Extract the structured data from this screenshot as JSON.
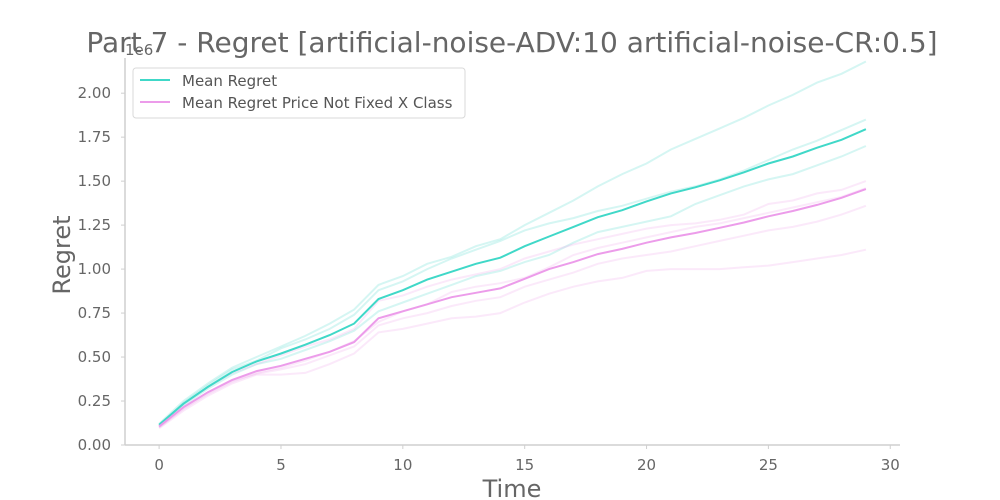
{
  "chart_data": {
    "type": "line",
    "title": "Part 7 - Regret [artificial-noise-ADV:10 artificial-noise-CR:0.5]",
    "xlabel": "Time",
    "ylabel": "Regret",
    "y_scale_label": "1e6",
    "xlim": [
      -1.4,
      30.4
    ],
    "ylim": [
      0,
      2200000
    ],
    "x_ticks": [
      0,
      5,
      10,
      15,
      20,
      25,
      30
    ],
    "y_ticks": [
      0,
      250000,
      500000,
      750000,
      1000000,
      1250000,
      1500000,
      1750000,
      2000000
    ],
    "x_tick_labels": [
      "0",
      "5",
      "10",
      "15",
      "20",
      "25",
      "30"
    ],
    "y_tick_labels": [
      "0.00",
      "0.25",
      "0.50",
      "0.75",
      "1.00",
      "1.25",
      "1.50",
      "1.75",
      "2.00"
    ],
    "grid": false,
    "legend_position": "top-left",
    "x": [
      0,
      1,
      2,
      3,
      4,
      5,
      6,
      7,
      8,
      9,
      10,
      11,
      12,
      13,
      14,
      15,
      16,
      17,
      18,
      19,
      20,
      21,
      22,
      23,
      24,
      25,
      26,
      27,
      28,
      29
    ],
    "series": [
      {
        "name": "Mean Regret",
        "color": "#40d8c8",
        "values": [
          115000,
          235000,
          330000,
          415000,
          475000,
          520000,
          570000,
          625000,
          690000,
          830000,
          880000,
          940000,
          985000,
          1030000,
          1065000,
          1130000,
          1185000,
          1240000,
          1295000,
          1335000,
          1385000,
          1430000,
          1465000,
          1505000,
          1550000,
          1600000,
          1640000,
          1690000,
          1735000,
          1795000
        ]
      },
      {
        "name": "Mean Regret Price Not Fixed X Class",
        "color": "#ec9cea",
        "values": [
          105000,
          215000,
          300000,
          370000,
          420000,
          450000,
          490000,
          530000,
          585000,
          720000,
          760000,
          800000,
          840000,
          865000,
          890000,
          945000,
          1000000,
          1040000,
          1085000,
          1115000,
          1150000,
          1180000,
          1205000,
          1235000,
          1265000,
          1300000,
          1330000,
          1365000,
          1405000,
          1455000
        ]
      }
    ],
    "faint_series": [
      {
        "color": "#40d8c8",
        "values": [
          120000,
          250000,
          350000,
          440000,
          500000,
          560000,
          620000,
          690000,
          770000,
          910000,
          960000,
          1030000,
          1070000,
          1130000,
          1170000,
          1250000,
          1320000,
          1390000,
          1470000,
          1540000,
          1600000,
          1680000,
          1740000,
          1800000,
          1860000,
          1930000,
          1990000,
          2060000,
          2110000,
          2180000
        ]
      },
      {
        "color": "#40d8c8",
        "values": [
          110000,
          240000,
          340000,
          430000,
          480000,
          550000,
          600000,
          660000,
          740000,
          880000,
          930000,
          1000000,
          1060000,
          1110000,
          1160000,
          1220000,
          1260000,
          1290000,
          1330000,
          1360000,
          1400000,
          1440000,
          1470000,
          1510000,
          1560000,
          1620000,
          1680000,
          1730000,
          1790000,
          1850000
        ]
      },
      {
        "color": "#40d8c8",
        "values": [
          105000,
          225000,
          320000,
          400000,
          460000,
          490000,
          540000,
          590000,
          650000,
          760000,
          810000,
          860000,
          910000,
          960000,
          990000,
          1040000,
          1080000,
          1150000,
          1210000,
          1240000,
          1270000,
          1300000,
          1370000,
          1420000,
          1470000,
          1510000,
          1540000,
          1590000,
          1640000,
          1700000
        ]
      },
      {
        "color": "#ec9cea",
        "values": [
          110000,
          230000,
          330000,
          410000,
          460000,
          510000,
          560000,
          600000,
          660000,
          820000,
          850000,
          900000,
          940000,
          970000,
          1000000,
          1060000,
          1100000,
          1140000,
          1170000,
          1200000,
          1230000,
          1250000,
          1260000,
          1280000,
          1310000,
          1370000,
          1390000,
          1430000,
          1450000,
          1500000
        ]
      },
      {
        "color": "#ec9cea",
        "values": [
          100000,
          210000,
          290000,
          360000,
          410000,
          440000,
          480000,
          530000,
          590000,
          700000,
          760000,
          800000,
          870000,
          900000,
          920000,
          950000,
          1010000,
          1080000,
          1120000,
          1150000,
          1180000,
          1210000,
          1240000,
          1260000,
          1290000,
          1320000,
          1350000,
          1380000,
          1410000,
          1460000
        ]
      },
      {
        "color": "#ec9cea",
        "values": [
          95000,
          195000,
          280000,
          350000,
          400000,
          400000,
          410000,
          460000,
          520000,
          640000,
          660000,
          690000,
          720000,
          730000,
          750000,
          810000,
          860000,
          900000,
          930000,
          950000,
          990000,
          1000000,
          1000000,
          1000000,
          1010000,
          1020000,
          1040000,
          1060000,
          1080000,
          1110000
        ]
      },
      {
        "color": "#ec9cea",
        "values": [
          100000,
          205000,
          295000,
          365000,
          405000,
          430000,
          460000,
          510000,
          560000,
          680000,
          720000,
          750000,
          790000,
          820000,
          840000,
          900000,
          940000,
          980000,
          1030000,
          1060000,
          1080000,
          1100000,
          1130000,
          1160000,
          1190000,
          1220000,
          1240000,
          1270000,
          1310000,
          1360000
        ]
      }
    ]
  }
}
